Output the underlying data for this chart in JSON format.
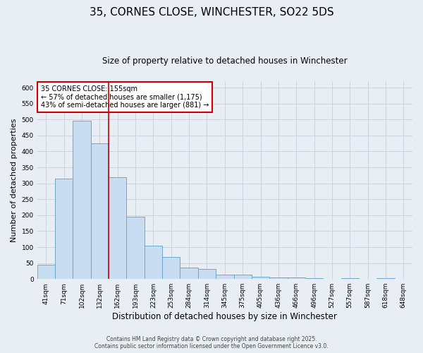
{
  "title": "35, CORNES CLOSE, WINCHESTER, SO22 5DS",
  "subtitle": "Size of property relative to detached houses in Winchester",
  "xlabel": "Distribution of detached houses by size in Winchester",
  "ylabel": "Number of detached properties",
  "bar_labels": [
    "41sqm",
    "71sqm",
    "102sqm",
    "132sqm",
    "162sqm",
    "193sqm",
    "223sqm",
    "253sqm",
    "284sqm",
    "314sqm",
    "345sqm",
    "375sqm",
    "405sqm",
    "436sqm",
    "466sqm",
    "496sqm",
    "527sqm",
    "557sqm",
    "587sqm",
    "618sqm",
    "648sqm"
  ],
  "bar_values": [
    45,
    315,
    497,
    425,
    320,
    195,
    105,
    68,
    35,
    32,
    13,
    13,
    8,
    5,
    5,
    2,
    0,
    2,
    0,
    2,
    0
  ],
  "bar_color": "#c9ddf2",
  "bar_edge_color": "#6aaad4",
  "vline_color": "#cc0000",
  "annotation_text": "35 CORNES CLOSE: 155sqm\n← 57% of detached houses are smaller (1,175)\n43% of semi-detached houses are larger (881) →",
  "annotation_box_color": "#ffffff",
  "annotation_box_edge": "#cc0000",
  "ylim": [
    0,
    620
  ],
  "yticks": [
    0,
    50,
    100,
    150,
    200,
    250,
    300,
    350,
    400,
    450,
    500,
    550,
    600
  ],
  "background_color": "#e8eef4",
  "grid_color": "#c5d0da",
  "footer_line1": "Contains HM Land Registry data © Crown copyright and database right 2025.",
  "footer_line2": "Contains public sector information licensed under the Open Government Licence v3.0.",
  "title_fontsize": 11,
  "subtitle_fontsize": 8.5,
  "xlabel_fontsize": 8.5,
  "ylabel_fontsize": 8,
  "tick_fontsize": 6.5,
  "annotation_fontsize": 7,
  "footer_fontsize": 5.5
}
